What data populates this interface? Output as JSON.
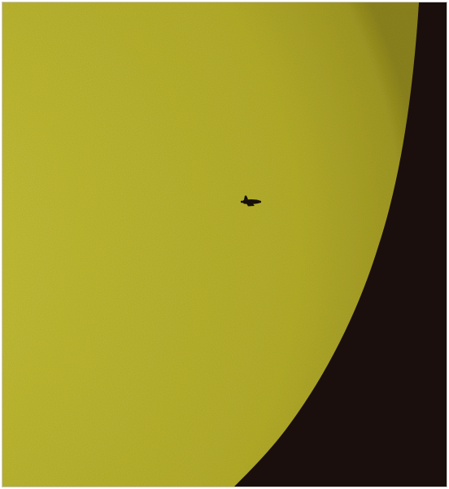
{
  "photo": {
    "subject_icons": [
      "sun-disk",
      "space-shuttle-silhouette"
    ],
    "colors": {
      "sky": "#1a0f0d",
      "sun_light": "#c8c43a",
      "sun_mid": "#b5ae2c",
      "sun_limb": "#8d8420",
      "silhouette": "#15100a"
    }
  }
}
